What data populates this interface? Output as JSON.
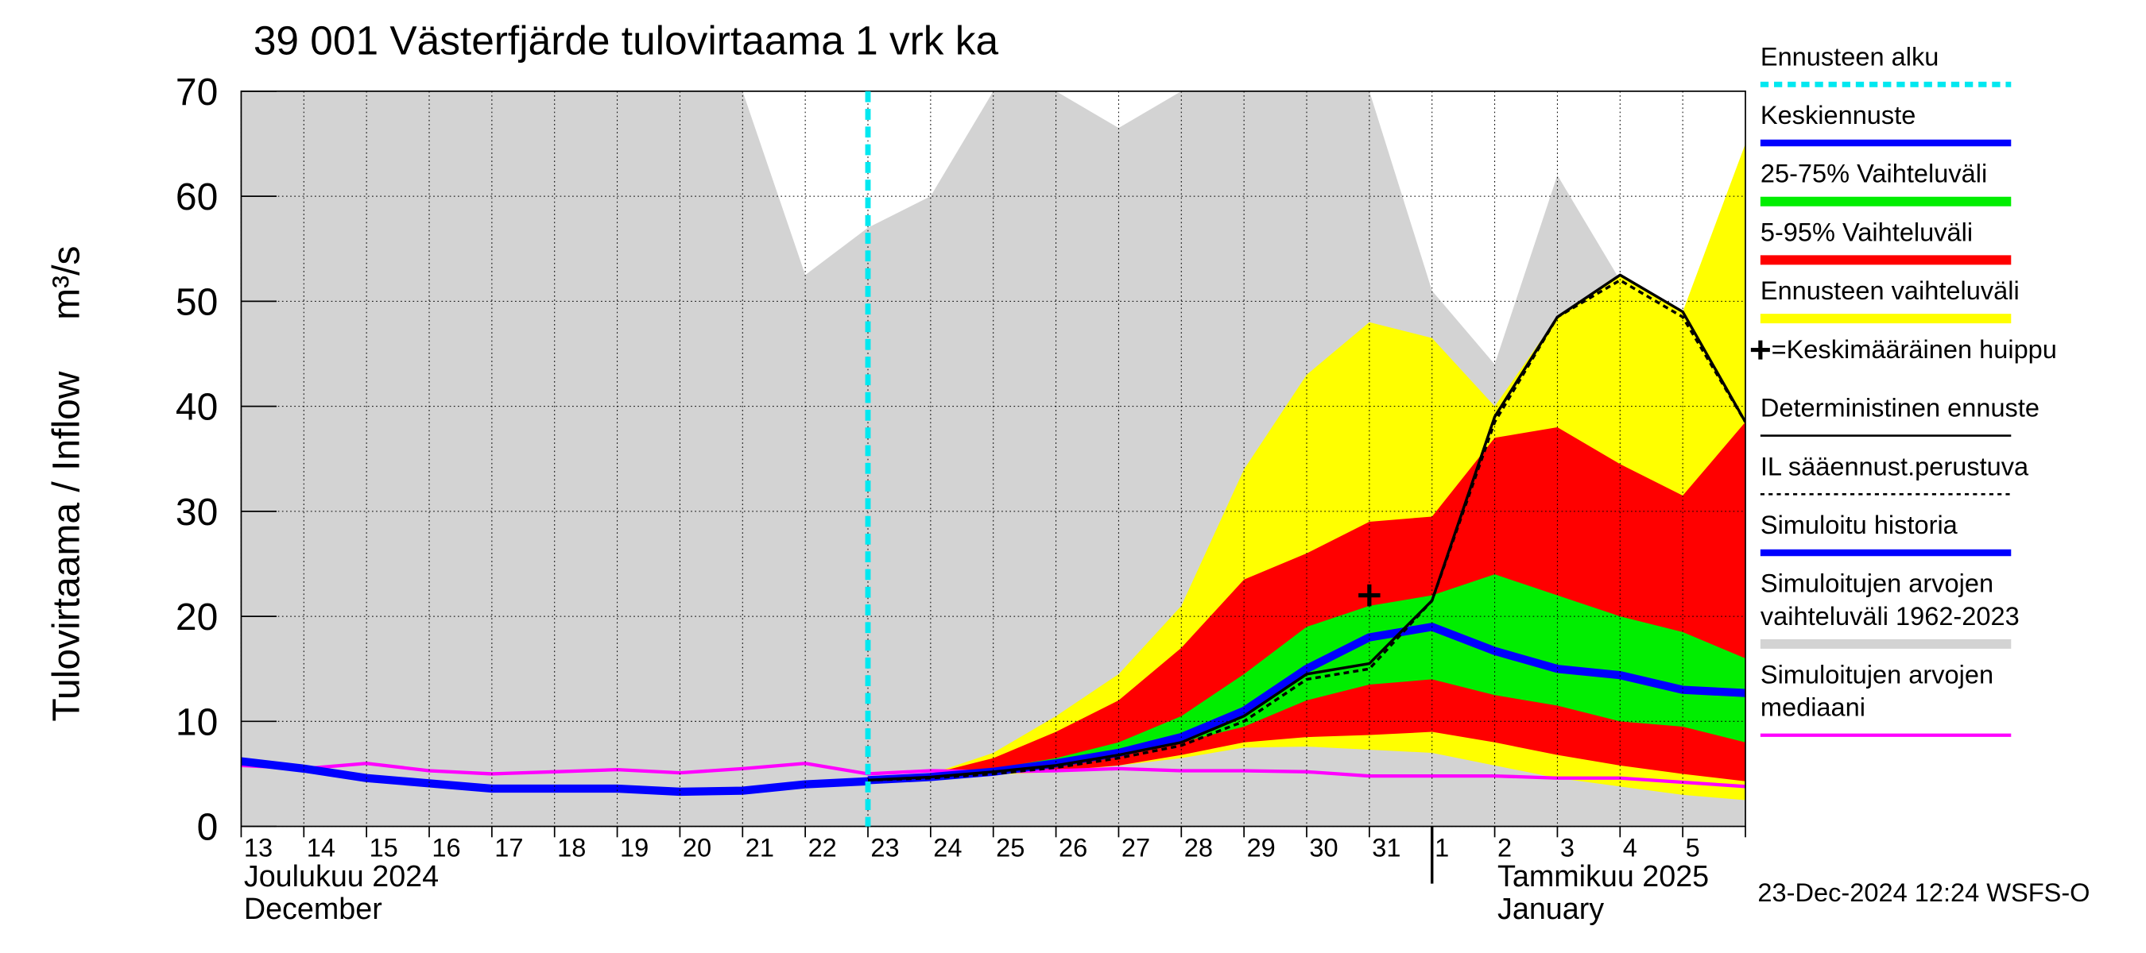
{
  "chart_data": {
    "type": "line",
    "title": "39 001 Västerfjärde tulovirtaama 1 vrk ka",
    "y_label": "Tulovirtaama / Inflow",
    "y_unit": "m³/s",
    "categories": [
      "13",
      "14",
      "15",
      "16",
      "17",
      "18",
      "19",
      "20",
      "21",
      "22",
      "23",
      "24",
      "25",
      "26",
      "27",
      "28",
      "29",
      "30",
      "31",
      "1",
      "2",
      "3",
      "4",
      "5",
      null
    ],
    "month_labels": [
      {
        "index": 0,
        "fi": "Joulukuu  2024",
        "en": "December"
      },
      {
        "index": 19,
        "fi": "Tammikuu  2025",
        "en": "January"
      }
    ],
    "ylim": [
      0,
      70
    ],
    "yticks": [
      0,
      10,
      20,
      30,
      40,
      50,
      60,
      70
    ],
    "grid": true,
    "forecast_start": {
      "name": "Ennusteen alku",
      "index": 10,
      "color": "#00e8f0"
    },
    "peak": {
      "name": "=Keskimääräinen huippu",
      "index": 18,
      "value": 22,
      "color": "#000000"
    },
    "series": [
      {
        "name": "Keskiennuste",
        "type": "line",
        "color": "#0000ff",
        "width": 6,
        "values": [
          null,
          null,
          null,
          null,
          null,
          null,
          null,
          null,
          null,
          null,
          4.4,
          4.7,
          5.2,
          6,
          7,
          8.5,
          11,
          15,
          18,
          19,
          16.7,
          15,
          14.4,
          13,
          12.7
        ]
      },
      {
        "name": "25-75% Vaihteluväli",
        "type": "band",
        "color": "#00ee00",
        "lower": [
          null,
          null,
          null,
          null,
          null,
          null,
          null,
          null,
          null,
          null,
          4.5,
          4.7,
          5,
          6,
          7,
          8,
          9.5,
          12,
          13.5,
          14,
          12.5,
          11.5,
          10,
          9.5,
          8
        ],
        "upper": [
          null,
          null,
          null,
          null,
          null,
          null,
          null,
          null,
          null,
          null,
          4.5,
          4.9,
          5.5,
          6.5,
          8,
          10.5,
          14.5,
          19,
          21,
          22,
          24,
          22,
          20,
          18.5,
          16
        ]
      },
      {
        "name": "5-95% Vaihteluväli",
        "type": "band",
        "color": "#ff0000",
        "lower": [
          null,
          null,
          null,
          null,
          null,
          null,
          null,
          null,
          null,
          null,
          4.5,
          4.7,
          5,
          5.3,
          5.8,
          6.8,
          8,
          8.5,
          8.7,
          9,
          8,
          6.8,
          5.8,
          5,
          4.3
        ],
        "upper": [
          null,
          null,
          null,
          null,
          null,
          null,
          null,
          null,
          null,
          null,
          4.5,
          5,
          6.5,
          9,
          12,
          17,
          23.5,
          26,
          29,
          29.5,
          37,
          38,
          34.5,
          31.5,
          38.5
        ]
      },
      {
        "name": "Ennusteen vaihteluväli",
        "type": "band",
        "color": "#ffff00",
        "lower": [
          null,
          null,
          null,
          null,
          null,
          null,
          null,
          null,
          null,
          null,
          4.5,
          4.7,
          4.9,
          5.2,
          5.8,
          6.5,
          7.5,
          7.6,
          7.3,
          7,
          5.8,
          4.6,
          3.8,
          3,
          2.5
        ],
        "upper": [
          null,
          null,
          null,
          null,
          null,
          null,
          null,
          null,
          null,
          null,
          4.5,
          5,
          7,
          10.5,
          14.5,
          21,
          34,
          43,
          48,
          46.5,
          40,
          48.5,
          52.5,
          49,
          65
        ]
      },
      {
        "name": "Deterministinen ennuste",
        "type": "line",
        "color": "#000000",
        "width": 2,
        "values": [
          null,
          null,
          null,
          null,
          null,
          null,
          null,
          null,
          null,
          null,
          4.4,
          4.7,
          5.2,
          5.8,
          6.8,
          8,
          10.5,
          14.5,
          15.5,
          21.5,
          39,
          48.5,
          52.5,
          49,
          38.5
        ]
      },
      {
        "name": "IL sääennust.perustuva",
        "type": "line",
        "color": "#000000",
        "width": 2,
        "dash": true,
        "values": [
          null,
          null,
          null,
          null,
          null,
          null,
          null,
          null,
          null,
          null,
          4.4,
          4.6,
          5,
          5.6,
          6.5,
          7.7,
          10,
          14,
          15,
          21.5,
          38.5,
          48.5,
          52,
          48.5,
          38.5
        ]
      },
      {
        "name": "Simuloitu historia",
        "type": "line",
        "color": "#0000ff",
        "width": 6,
        "values": [
          6.2,
          5.5,
          4.6,
          4.1,
          3.6,
          3.6,
          3.6,
          3.3,
          3.4,
          4,
          4.3,
          null,
          null,
          null,
          null,
          null,
          null,
          null,
          null,
          null,
          null,
          null,
          null,
          null,
          null
        ]
      },
      {
        "name": "Simuloitujen arvojen vaihteluväli 1962-2023",
        "type": "area",
        "color": "#d3d3d3",
        "values": [
          70,
          70,
          70,
          70,
          70,
          70,
          70,
          70,
          70,
          52.5,
          57,
          60,
          70,
          70,
          66.5,
          70,
          70,
          70,
          70,
          51,
          44,
          62,
          52,
          31,
          27
        ]
      },
      {
        "name": "Simuloitujen arvojen mediaani",
        "type": "line",
        "color": "#ff00ff",
        "width": 2.5,
        "values": [
          5.8,
          5.5,
          6,
          5.3,
          5,
          5.2,
          5.4,
          5.1,
          5.5,
          6,
          5,
          5.3,
          5.2,
          5.3,
          5.5,
          5.3,
          5.3,
          5.2,
          4.8,
          4.8,
          4.8,
          4.6,
          4.6,
          4.2,
          3.8
        ]
      }
    ],
    "timestamp": "23-Dec-2024 12:24 WSFS-O"
  }
}
